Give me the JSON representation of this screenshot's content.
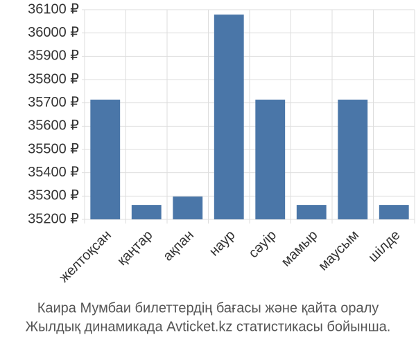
{
  "chart_data": {
    "type": "bar",
    "title": "Каира Мумбаи билеттердің бағасы және қайта оралу",
    "subtitle": "Жылдық динамикада Avticket.kz статистикасы бойынша.",
    "categories": [
      "желтоқсан",
      "қаңтар",
      "ақпан",
      "наур",
      "сәуір",
      "мамыр",
      "маусым",
      "шілде"
    ],
    "values": [
      35714,
      35262,
      35298,
      36079,
      35714,
      35262,
      35714,
      35262
    ],
    "color": "#4a76a8",
    "ylim": [
      35200,
      36100
    ],
    "yticks": [
      {
        "value": 35200,
        "label": "35200 ₽"
      },
      {
        "value": 35300,
        "label": "35300 ₽"
      },
      {
        "value": 35400,
        "label": "35400 ₽"
      },
      {
        "value": 35500,
        "label": "35500 ₽"
      },
      {
        "value": 35600,
        "label": "35600 ₽"
      },
      {
        "value": 35700,
        "label": "35700 ₽"
      },
      {
        "value": 35800,
        "label": "35800 ₽"
      },
      {
        "value": 35900,
        "label": "35900 ₽"
      },
      {
        "value": 36000,
        "label": "36000 ₽"
      },
      {
        "value": 36100,
        "label": "36100 ₽"
      }
    ],
    "grid": true
  }
}
